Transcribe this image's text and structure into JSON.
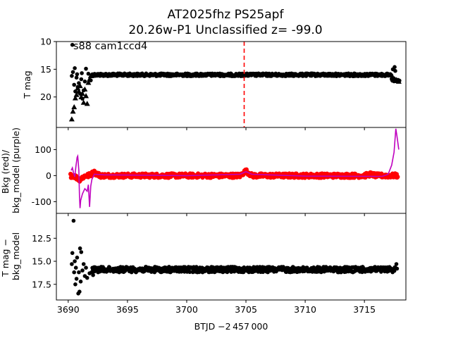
{
  "figure": {
    "title_line1": "AT2025fhz  PS25apf",
    "title_line2": "20.26w-P1 Unclassified z= -99.0",
    "annotation": "s88 cam1ccd4",
    "xlabel": "BTJD −2 457 000"
  },
  "colors": {
    "flux": "#000000",
    "bkg": "#ff0000",
    "bkg_model": "#bf00bf",
    "marker_line": "#ff0000"
  },
  "chart_data": [
    {
      "type": "scatter",
      "panel": "top",
      "ylabel": "T mag",
      "xlim": [
        3689.0,
        3718.5
      ],
      "ylim": [
        25.5,
        10.0
      ],
      "y_inverted": true,
      "xticks": [
        3690,
        3695,
        3700,
        3705,
        3710,
        3715
      ],
      "yticks": [
        10,
        15,
        20
      ],
      "vline_x": 3704.85,
      "series": [
        {
          "marker": "circle",
          "segments": [
            {
              "x0": 3692.0,
              "x1": 3717.3,
              "y": 16.0,
              "spread": 0.25
            },
            {
              "x0": 3717.3,
              "x1": 3717.95,
              "y": 16.9,
              "spread": 0.3
            }
          ],
          "scatter_points": [
            [
              3690.3,
              16.2
            ],
            [
              3690.4,
              15.5
            ],
            [
              3690.5,
              17.8
            ],
            [
              3690.6,
              19.0
            ],
            [
              3690.7,
              16.5
            ],
            [
              3690.8,
              18.2
            ],
            [
              3690.9,
              17.5
            ],
            [
              3691.0,
              19.4
            ],
            [
              3691.1,
              16.8
            ],
            [
              3691.2,
              20.3
            ],
            [
              3691.3,
              18.8
            ],
            [
              3691.4,
              17.2
            ],
            [
              3690.35,
              10.6
            ],
            [
              3690.55,
              14.8
            ],
            [
              3690.75,
              15.9
            ],
            [
              3691.15,
              15.7
            ],
            [
              3691.5,
              14.9
            ],
            [
              3691.7,
              15.8
            ],
            [
              3691.9,
              17.0
            ],
            [
              3692.1,
              16.2
            ],
            [
              3717.4,
              15.0
            ],
            [
              3717.55,
              14.6
            ],
            [
              3717.6,
              15.3
            ]
          ]
        },
        {
          "marker": "triangle",
          "points": [
            [
              3690.3,
              24.0
            ],
            [
              3690.4,
              22.6
            ],
            [
              3690.5,
              21.8
            ],
            [
              3690.6,
              20.2
            ],
            [
              3690.7,
              19.6
            ],
            [
              3690.8,
              18.4
            ],
            [
              3690.9,
              19.0
            ],
            [
              3691.0,
              18.0
            ],
            [
              3691.1,
              20.0
            ],
            [
              3691.2,
              19.4
            ],
            [
              3691.3,
              21.0
            ],
            [
              3691.4,
              18.6
            ],
            [
              3691.5,
              19.8
            ],
            [
              3691.6,
              21.2
            ],
            [
              3691.7,
              17.4
            ],
            [
              3691.8,
              16.8
            ],
            [
              3691.9,
              16.2
            ],
            [
              3717.5,
              17.0
            ],
            [
              3717.7,
              16.9
            ],
            [
              3717.9,
              17.2
            ]
          ]
        }
      ]
    },
    {
      "type": "line",
      "panel": "middle",
      "ylabel": "Bkg (red)/\nbkg_model (purple)",
      "ylim": [
        -145,
        185
      ],
      "yticks": [
        -100,
        0,
        100
      ],
      "series": [
        {
          "name": "bkg",
          "kind": "points",
          "x0": 3690.2,
          "x1": 3717.8,
          "y": 0,
          "spread": 8,
          "bumps": [
            [
              3690.95,
              -15
            ],
            [
              3692.2,
              12
            ],
            [
              3705.0,
              18
            ],
            [
              3715.5,
              5
            ]
          ]
        },
        {
          "name": "bkg_model",
          "kind": "line",
          "points": [
            [
              3690.25,
              20
            ],
            [
              3690.35,
              30
            ],
            [
              3690.45,
              10
            ],
            [
              3690.55,
              -5
            ],
            [
              3690.65,
              35
            ],
            [
              3690.75,
              70
            ],
            [
              3690.8,
              75
            ],
            [
              3690.9,
              20
            ],
            [
              3690.95,
              -80
            ],
            [
              3691.0,
              -125
            ],
            [
              3691.05,
              -95
            ],
            [
              3691.2,
              -70
            ],
            [
              3691.4,
              -50
            ],
            [
              3691.6,
              -60
            ],
            [
              3691.7,
              -35
            ],
            [
              3691.8,
              -120
            ],
            [
              3691.9,
              -40
            ],
            [
              3692.0,
              -15
            ],
            [
              3692.2,
              5
            ],
            [
              3693.0,
              3
            ],
            [
              3700.0,
              0
            ],
            [
              3704.5,
              5
            ],
            [
              3705.0,
              15
            ],
            [
              3705.5,
              5
            ],
            [
              3710.0,
              -2
            ],
            [
              3716.5,
              -3
            ],
            [
              3717.0,
              5
            ],
            [
              3717.3,
              40
            ],
            [
              3717.5,
              90
            ],
            [
              3717.65,
              180
            ],
            [
              3717.75,
              150
            ],
            [
              3717.9,
              100
            ]
          ]
        }
      ]
    },
    {
      "type": "scatter",
      "panel": "bottom",
      "ylabel": "T mag −\nbkg_model",
      "ylim": [
        19.2,
        9.8
      ],
      "y_inverted": true,
      "yticks": [
        12.5,
        15.0,
        17.5
      ],
      "series": [
        {
          "marker": "circle",
          "segments": [
            {
              "x0": 3692.0,
              "x1": 3717.6,
              "y": 15.9,
              "spread": 0.3
            }
          ],
          "scatter_points": [
            [
              3690.3,
              15.3
            ],
            [
              3690.35,
              14.1
            ],
            [
              3690.45,
              10.6
            ],
            [
              3690.5,
              16.2
            ],
            [
              3690.55,
              15.0
            ],
            [
              3690.6,
              17.5
            ],
            [
              3690.65,
              15.7
            ],
            [
              3690.7,
              16.9
            ],
            [
              3690.75,
              14.6
            ],
            [
              3690.85,
              18.5
            ],
            [
              3690.9,
              16.2
            ],
            [
              3690.95,
              18.3
            ],
            [
              3691.0,
              13.6
            ],
            [
              3691.05,
              17.2
            ],
            [
              3691.1,
              14.0
            ],
            [
              3691.2,
              16.0
            ],
            [
              3691.3,
              15.3
            ],
            [
              3691.4,
              16.6
            ],
            [
              3691.5,
              15.7
            ],
            [
              3691.6,
              16.8
            ],
            [
              3691.8,
              16.3
            ],
            [
              3692.1,
              16.5
            ],
            [
              3717.7,
              15.3
            ],
            [
              3717.75,
              15.8
            ]
          ]
        }
      ]
    }
  ]
}
